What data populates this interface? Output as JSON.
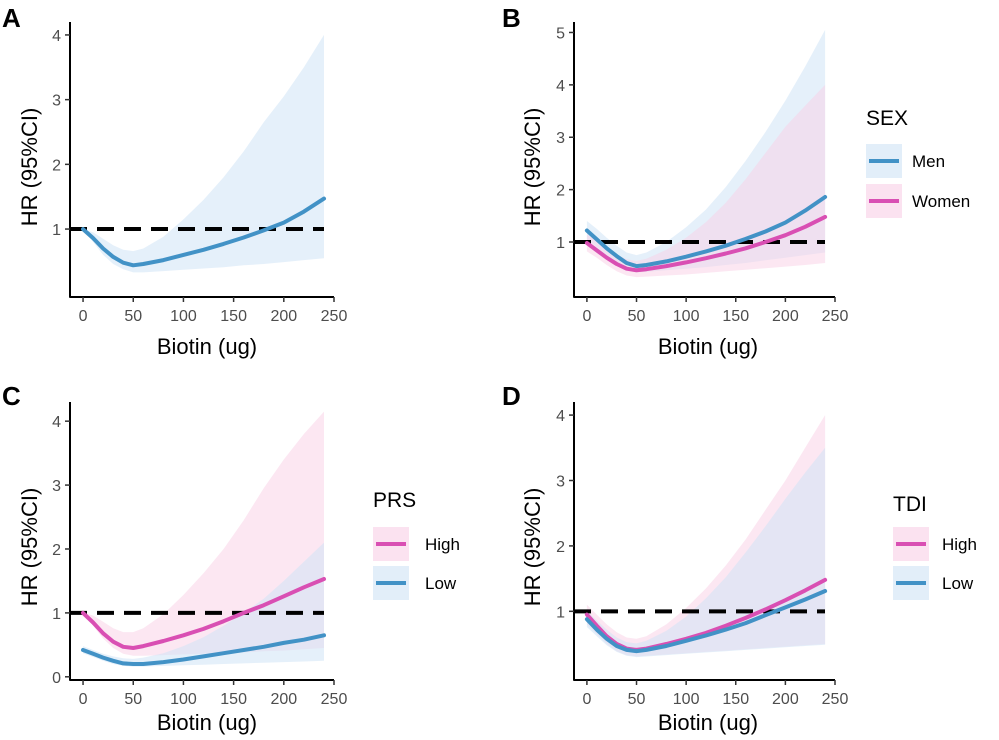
{
  "colors": {
    "blue": "#4292c6",
    "magenta": "#d94fb3",
    "blue_fill": "#cfe3f5",
    "magenta_fill": "#f9cfe6",
    "reference_line": "#000000"
  },
  "chart_data": [
    {
      "type": "line",
      "panel": "A",
      "xlabel": "Biotin (ug)",
      "ylabel": "HR (95%CI)",
      "xlim": [
        -13,
        250
      ],
      "ylim": [
        -0.05,
        4.2
      ],
      "xticks": [
        0,
        50,
        100,
        150,
        200,
        250
      ],
      "yticks": [
        1,
        2,
        3,
        4
      ],
      "reference_line": 1,
      "legend": null,
      "series": [
        {
          "color": "blue",
          "x": [
            0,
            10,
            20,
            30,
            40,
            50,
            60,
            80,
            100,
            120,
            140,
            160,
            180,
            200,
            220,
            240
          ],
          "y": [
            1.0,
            0.86,
            0.7,
            0.57,
            0.48,
            0.44,
            0.46,
            0.52,
            0.6,
            0.68,
            0.77,
            0.87,
            0.98,
            1.1,
            1.27,
            1.47
          ],
          "lower": [
            1.0,
            0.8,
            0.6,
            0.46,
            0.38,
            0.33,
            0.33,
            0.35,
            0.37,
            0.39,
            0.41,
            0.44,
            0.46,
            0.49,
            0.52,
            0.55
          ],
          "upper": [
            1.0,
            0.95,
            0.85,
            0.75,
            0.68,
            0.66,
            0.7,
            0.88,
            1.15,
            1.45,
            1.8,
            2.2,
            2.65,
            3.05,
            3.5,
            4.0
          ]
        }
      ]
    },
    {
      "type": "line",
      "panel": "B",
      "xlabel": "Biotin (ug)",
      "ylabel": "HR (95%CI)",
      "xlim": [
        -13,
        250
      ],
      "ylim": [
        -0.05,
        5.2
      ],
      "xticks": [
        0,
        50,
        100,
        150,
        200,
        250
      ],
      "yticks": [
        1,
        2,
        3,
        4,
        5
      ],
      "reference_line": 1,
      "legend": {
        "title": "SEX",
        "position": "right",
        "items": [
          "Men",
          "Women"
        ]
      },
      "series": [
        {
          "name": "Men",
          "color": "blue",
          "x": [
            0,
            10,
            20,
            30,
            40,
            50,
            60,
            80,
            100,
            120,
            140,
            160,
            180,
            200,
            220,
            240
          ],
          "y": [
            1.22,
            1.05,
            0.88,
            0.73,
            0.6,
            0.54,
            0.56,
            0.63,
            0.72,
            0.82,
            0.93,
            1.06,
            1.2,
            1.37,
            1.6,
            1.86
          ],
          "lower": [
            1.05,
            0.9,
            0.72,
            0.58,
            0.47,
            0.42,
            0.43,
            0.46,
            0.49,
            0.52,
            0.56,
            0.6,
            0.65,
            0.7,
            0.75,
            0.8
          ],
          "upper": [
            1.4,
            1.25,
            1.08,
            0.93,
            0.8,
            0.75,
            0.8,
            1.0,
            1.28,
            1.62,
            2.05,
            2.55,
            3.1,
            3.7,
            4.35,
            5.05
          ]
        },
        {
          "name": "Women",
          "color": "magenta",
          "x": [
            0,
            10,
            20,
            30,
            40,
            50,
            60,
            80,
            100,
            120,
            140,
            160,
            180,
            200,
            220,
            240
          ],
          "y": [
            0.98,
            0.84,
            0.7,
            0.58,
            0.49,
            0.46,
            0.48,
            0.54,
            0.61,
            0.69,
            0.78,
            0.88,
            1.0,
            1.13,
            1.29,
            1.48
          ],
          "lower": [
            0.82,
            0.7,
            0.56,
            0.44,
            0.36,
            0.33,
            0.34,
            0.36,
            0.38,
            0.41,
            0.44,
            0.47,
            0.5,
            0.53,
            0.56,
            0.6
          ],
          "upper": [
            1.15,
            1.02,
            0.88,
            0.76,
            0.67,
            0.64,
            0.68,
            0.85,
            1.08,
            1.38,
            1.75,
            2.2,
            2.7,
            3.2,
            3.6,
            4.0
          ]
        }
      ]
    },
    {
      "type": "line",
      "panel": "C",
      "xlabel": "Biotin (ug)",
      "ylabel": "HR (95%CI)",
      "xlim": [
        -13,
        250
      ],
      "ylim": [
        -0.05,
        4.3
      ],
      "xticks": [
        0,
        50,
        100,
        150,
        200,
        250
      ],
      "yticks": [
        0,
        1,
        2,
        3,
        4
      ],
      "reference_line": 1,
      "legend": {
        "title": "PRS",
        "position": "right",
        "items": [
          "High",
          "Low"
        ]
      },
      "series": [
        {
          "name": "High",
          "color": "magenta",
          "x": [
            0,
            10,
            20,
            30,
            40,
            50,
            60,
            80,
            100,
            120,
            140,
            160,
            180,
            200,
            220,
            240
          ],
          "y": [
            1.0,
            0.85,
            0.68,
            0.55,
            0.47,
            0.45,
            0.48,
            0.56,
            0.65,
            0.75,
            0.87,
            1.0,
            1.12,
            1.26,
            1.4,
            1.53
          ],
          "lower": [
            1.0,
            0.8,
            0.6,
            0.45,
            0.36,
            0.33,
            0.33,
            0.34,
            0.35,
            0.36,
            0.37,
            0.38,
            0.4,
            0.41,
            0.43,
            0.45
          ],
          "upper": [
            1.0,
            0.96,
            0.86,
            0.76,
            0.7,
            0.7,
            0.76,
            0.98,
            1.28,
            1.62,
            2.0,
            2.45,
            2.95,
            3.4,
            3.8,
            4.15
          ]
        },
        {
          "name": "Low",
          "color": "blue",
          "x": [
            0,
            10,
            20,
            30,
            40,
            50,
            60,
            80,
            100,
            120,
            140,
            160,
            180,
            200,
            220,
            240
          ],
          "y": [
            0.42,
            0.36,
            0.3,
            0.25,
            0.21,
            0.2,
            0.2,
            0.23,
            0.27,
            0.32,
            0.37,
            0.42,
            0.47,
            0.53,
            0.58,
            0.65
          ],
          "lower": [
            0.37,
            0.31,
            0.25,
            0.2,
            0.17,
            0.16,
            0.16,
            0.17,
            0.18,
            0.19,
            0.2,
            0.21,
            0.22,
            0.23,
            0.24,
            0.25
          ],
          "upper": [
            0.48,
            0.42,
            0.36,
            0.32,
            0.29,
            0.28,
            0.3,
            0.37,
            0.48,
            0.62,
            0.8,
            1.0,
            1.22,
            1.5,
            1.8,
            2.1
          ]
        }
      ]
    },
    {
      "type": "line",
      "panel": "D",
      "xlabel": "Biotin (ug)",
      "ylabel": "HR (95%CI)",
      "xlim": [
        -13,
        250
      ],
      "ylim": [
        -0.05,
        4.2
      ],
      "xticks": [
        0,
        50,
        100,
        150,
        200,
        250
      ],
      "yticks": [
        1,
        2,
        3,
        4
      ],
      "reference_line": 1,
      "legend": {
        "title": "TDI",
        "position": "right",
        "items": [
          "High",
          "Low"
        ]
      },
      "series": [
        {
          "name": "High",
          "color": "magenta",
          "x": [
            0,
            10,
            20,
            30,
            40,
            50,
            60,
            80,
            100,
            120,
            140,
            160,
            180,
            200,
            220,
            240
          ],
          "y": [
            0.95,
            0.78,
            0.62,
            0.5,
            0.43,
            0.41,
            0.43,
            0.5,
            0.58,
            0.67,
            0.78,
            0.9,
            1.03,
            1.17,
            1.32,
            1.48
          ],
          "lower": [
            0.8,
            0.65,
            0.5,
            0.39,
            0.33,
            0.31,
            0.32,
            0.34,
            0.36,
            0.38,
            0.4,
            0.42,
            0.44,
            0.46,
            0.48,
            0.5
          ],
          "upper": [
            1.1,
            0.95,
            0.8,
            0.68,
            0.6,
            0.58,
            0.62,
            0.8,
            1.05,
            1.35,
            1.7,
            2.1,
            2.55,
            3.0,
            3.5,
            4.0
          ]
        },
        {
          "name": "Low",
          "color": "blue",
          "x": [
            0,
            10,
            20,
            30,
            40,
            50,
            60,
            80,
            100,
            120,
            140,
            160,
            180,
            200,
            220,
            240
          ],
          "y": [
            0.88,
            0.72,
            0.58,
            0.47,
            0.41,
            0.39,
            0.41,
            0.47,
            0.55,
            0.63,
            0.72,
            0.82,
            0.94,
            1.06,
            1.18,
            1.31
          ],
          "lower": [
            0.76,
            0.62,
            0.48,
            0.38,
            0.32,
            0.3,
            0.31,
            0.33,
            0.35,
            0.37,
            0.39,
            0.41,
            0.43,
            0.45,
            0.47,
            0.49
          ],
          "upper": [
            1.0,
            0.86,
            0.72,
            0.6,
            0.53,
            0.51,
            0.55,
            0.7,
            0.92,
            1.2,
            1.52,
            1.9,
            2.3,
            2.72,
            3.12,
            3.5
          ]
        }
      ]
    }
  ]
}
